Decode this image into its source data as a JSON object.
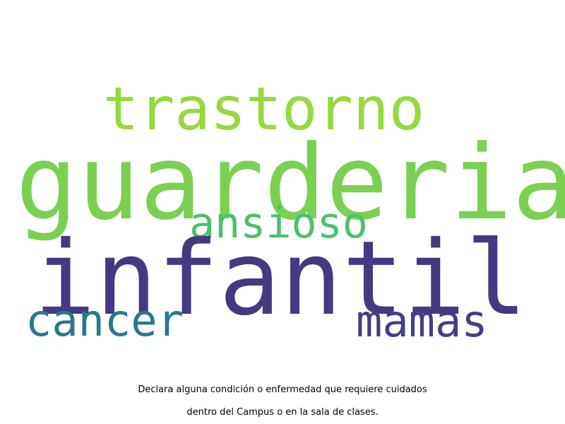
{
  "wordcloud": {
    "words": [
      {
        "id": "trastorno",
        "text": "trastorno",
        "color": "#97d83f"
      },
      {
        "id": "guarderia",
        "text": "guarderia",
        "color": "#7ad151"
      },
      {
        "id": "ansioso",
        "text": "ansioso",
        "color": "#4ac16d"
      },
      {
        "id": "infantil",
        "text": "infantil",
        "color": "#443983"
      },
      {
        "id": "cancer",
        "text": "cancer",
        "color": "#2a788e"
      },
      {
        "id": "mamas",
        "text": "mamas",
        "color": "#433e85"
      }
    ]
  },
  "caption": {
    "line1": "Declara alguna condición o enfermedad que requiere cuidados",
    "line2": "dentro del Campus o en la sala de clases."
  }
}
